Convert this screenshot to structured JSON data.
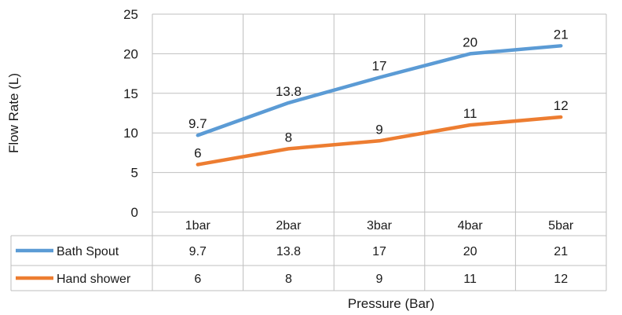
{
  "chart_data": {
    "type": "line",
    "title": "",
    "xlabel": "Pressure (Bar)",
    "ylabel": "Flow Rate (L)",
    "categories": [
      "1bar",
      "2bar",
      "3bar",
      "4bar",
      "5bar"
    ],
    "ylim": [
      0,
      25
    ],
    "yticks": [
      "0",
      "5",
      "10",
      "15",
      "20",
      "25"
    ],
    "grid": true,
    "legend": "data-table",
    "series": [
      {
        "name": "Bath Spout",
        "color": "#5B9BD5",
        "values": [
          9.7,
          13.8,
          17,
          20,
          21
        ],
        "labels": [
          "9.7",
          "13.8",
          "17",
          "20",
          "21"
        ]
      },
      {
        "name": "Hand shower",
        "color": "#ED7D31",
        "values": [
          6,
          8,
          9,
          11,
          12
        ],
        "labels": [
          "6",
          "8",
          "9",
          "11",
          "12"
        ]
      }
    ]
  }
}
